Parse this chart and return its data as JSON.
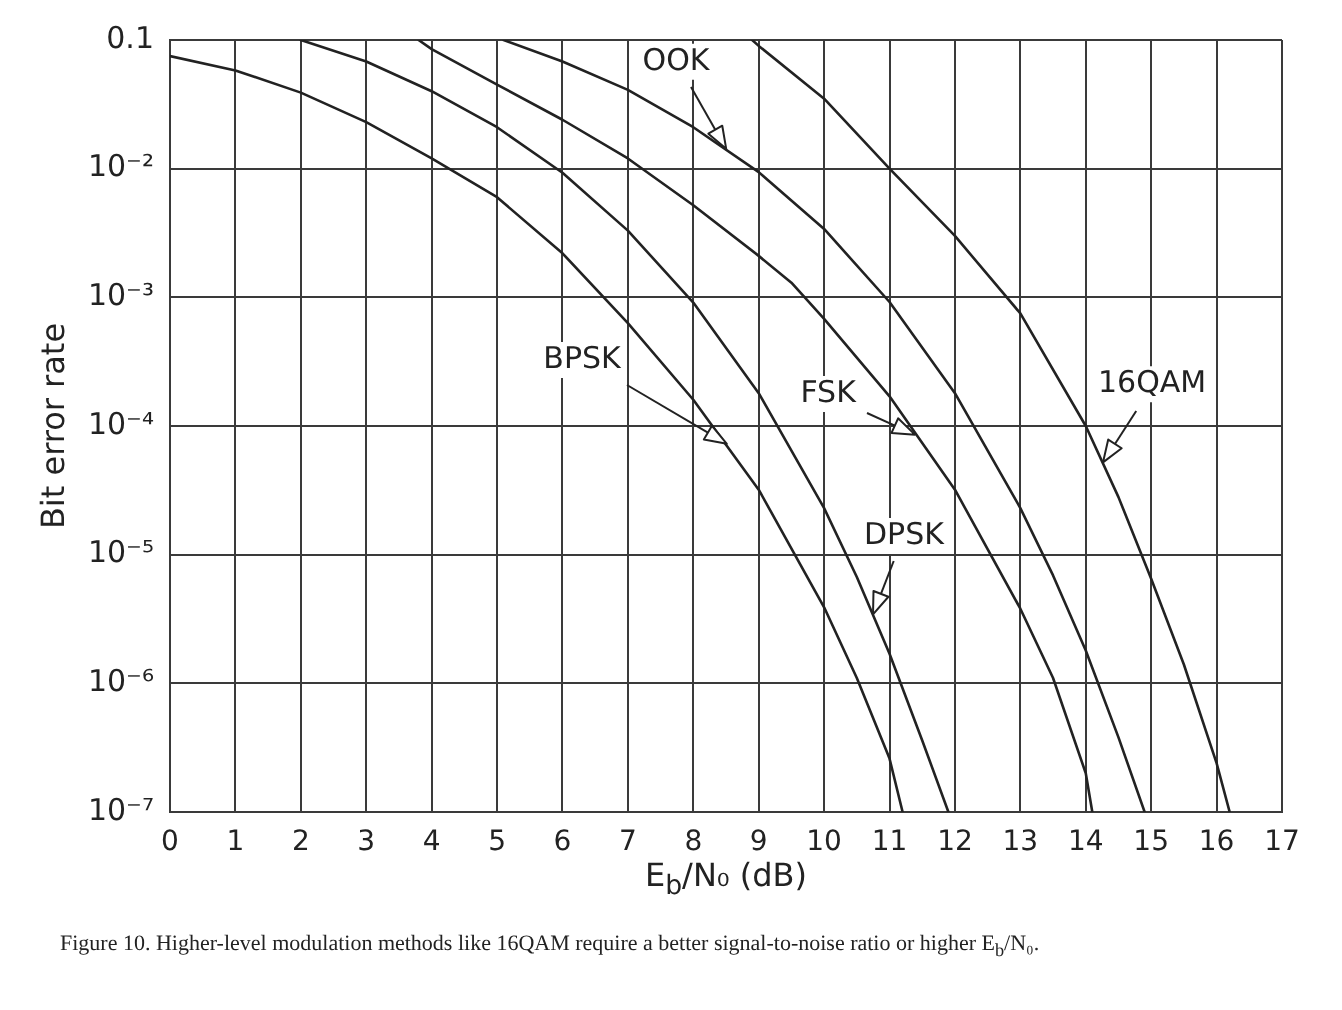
{
  "chart_data": {
    "type": "line",
    "xlabel": "E$_{b}$/N₀ (dB)",
    "ylabel": "Bit error rate",
    "annotations": [
      "Figure 10. Higher-level modulation methods like 16QAM require a better signal-to-noise ratio or higher E$_{b}$/N₀."
    ],
    "xlim": [
      0,
      17
    ],
    "xticks": [
      0,
      1,
      2,
      3,
      4,
      5,
      6,
      7,
      8,
      9,
      10,
      11,
      12,
      13,
      14,
      15,
      16,
      17
    ],
    "ylim": [
      1e-07,
      0.1
    ],
    "yticks": [
      {
        "value": 1e-07,
        "label": "10⁻⁷"
      },
      {
        "value": 1e-06,
        "label": "10⁻⁶"
      },
      {
        "value": 1e-05,
        "label": "10⁻⁵"
      },
      {
        "value": 0.0001,
        "label": "10⁻⁴"
      },
      {
        "value": 0.001,
        "label": "10⁻³"
      },
      {
        "value": 0.01,
        "label": "10⁻²"
      },
      0.1
    ],
    "log": true,
    "grid": true,
    "legend": false,
    "marker": "none",
    "series": [
      {
        "name": "BPSK",
        "color": "#222222",
        "x": [
          0,
          1,
          2,
          3,
          4,
          5,
          6,
          7,
          8,
          9,
          10,
          10.5,
          11,
          11.2
        ],
        "values": [
          0.075,
          0.058,
          0.039,
          0.023,
          0.012,
          0.006,
          0.0022,
          0.00063,
          0.00016,
          3.2e-05,
          3.9e-06,
          1.1e-06,
          2.6e-07,
          1e-07
        ]
      },
      {
        "name": "DPSK",
        "color": "#222222",
        "x": [
          2,
          3,
          4,
          5,
          6,
          7,
          8,
          9,
          10,
          10.5,
          11,
          11.5,
          11.9
        ],
        "values": [
          0.1,
          0.068,
          0.04,
          0.021,
          0.0093,
          0.0033,
          0.00091,
          0.00018,
          2.3e-05,
          6.7e-06,
          1.7e-06,
          3.6e-07,
          1e-07
        ]
      },
      {
        "name": "FSK",
        "color": "#222222",
        "x": [
          3.8,
          4,
          5,
          6,
          7,
          8,
          9,
          9.5,
          10,
          11,
          12,
          13,
          13.5,
          14,
          14.1
        ],
        "values": [
          0.1,
          0.085,
          0.045,
          0.024,
          0.012,
          0.0052,
          0.0021,
          0.0013,
          0.00068,
          0.00017,
          3.2e-05,
          3.8e-06,
          1.1e-06,
          2e-07,
          1e-07
        ]
      },
      {
        "name": "OOK",
        "color": "#222222",
        "x": [
          5.1,
          6,
          7,
          8,
          9,
          10,
          11,
          12,
          13,
          13.5,
          14,
          14.5,
          14.9
        ],
        "values": [
          0.1,
          0.068,
          0.041,
          0.021,
          0.0094,
          0.0034,
          0.00092,
          0.00018,
          2.3e-05,
          6.9e-06,
          1.8e-06,
          3.8e-07,
          1e-07
        ]
      },
      {
        "name": "16QAM",
        "color": "#222222",
        "x": [
          8.9,
          9,
          10,
          11,
          12,
          13,
          14,
          14.5,
          15,
          15.5,
          16,
          16.2
        ],
        "values": [
          0.1,
          0.09,
          0.035,
          0.01,
          0.003,
          0.00075,
          0.0001,
          2.8e-05,
          6.5e-06,
          1.4e-06,
          2.4e-07,
          1e-07
        ]
      }
    ]
  }
}
